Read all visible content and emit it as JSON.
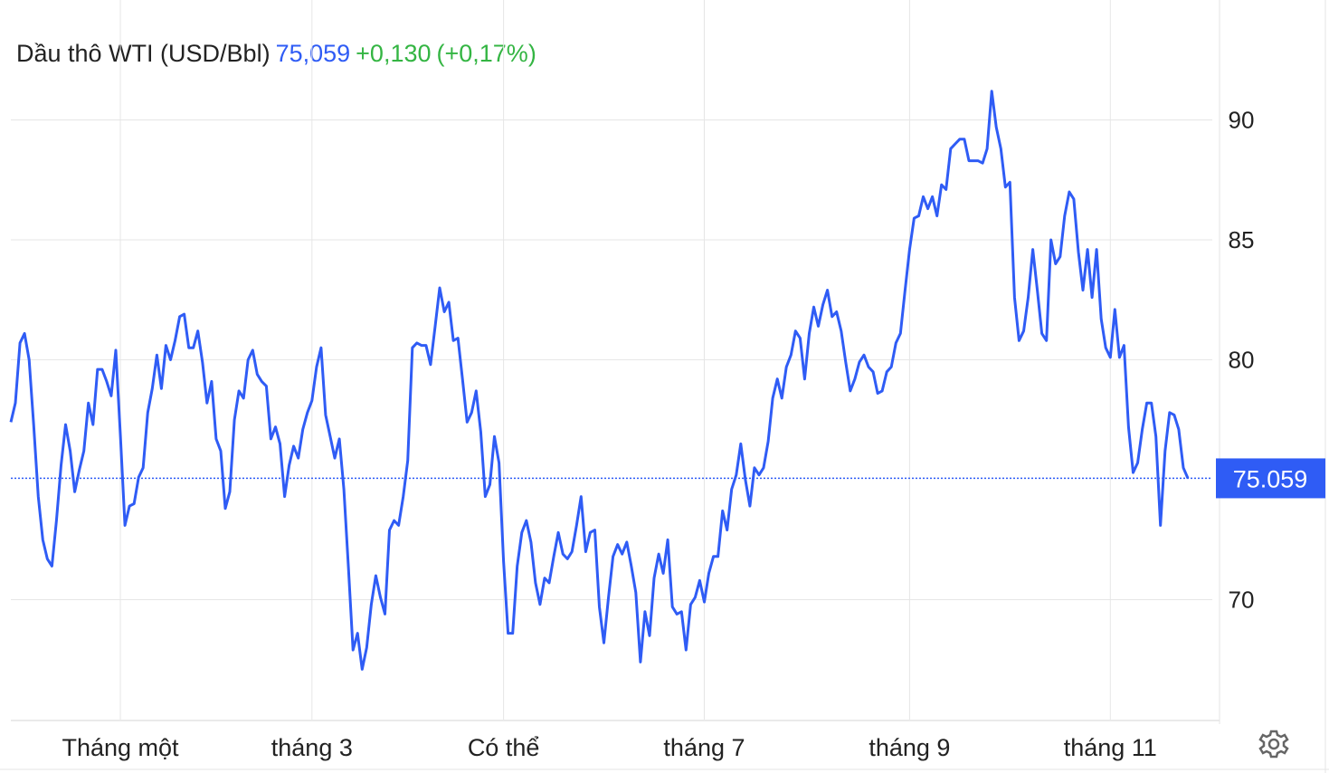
{
  "chart_data": {
    "type": "line",
    "title": "Dầu thô WTI (USD/Bbl)",
    "price_text": "75,059",
    "change_text": "+0,130",
    "change_pct_text": "(+0,17%)",
    "last_price": 75.059,
    "categories": [
      null,
      null,
      null,
      null,
      null,
      null,
      null,
      null,
      null,
      null,
      null,
      null,
      null,
      null,
      null,
      null,
      null,
      null,
      null,
      null,
      null,
      null,
      null,
      null,
      "Tháng một",
      null,
      null,
      null,
      null,
      null,
      null,
      null,
      null,
      null,
      null,
      null,
      null,
      null,
      null,
      null,
      null,
      null,
      null,
      null,
      null,
      null,
      null,
      null,
      null,
      null,
      null,
      null,
      null,
      null,
      null,
      null,
      null,
      null,
      null,
      null,
      null,
      null,
      null,
      null,
      null,
      null,
      "tháng 3",
      null,
      null,
      null,
      null,
      null,
      null,
      null,
      null,
      null,
      null,
      null,
      null,
      null,
      null,
      null,
      null,
      null,
      null,
      null,
      null,
      null,
      null,
      null,
      null,
      null,
      null,
      null,
      null,
      null,
      null,
      null,
      null,
      null,
      null,
      null,
      null,
      null,
      null,
      null,
      null,
      null,
      "Có thể",
      null,
      null,
      null,
      null,
      null,
      null,
      null,
      null,
      null,
      null,
      null,
      null,
      null,
      null,
      null,
      null,
      null,
      null,
      null,
      null,
      null,
      null,
      null,
      null,
      null,
      null,
      null,
      null,
      null,
      null,
      null,
      null,
      null,
      null,
      null,
      null,
      null,
      null,
      null,
      null,
      null,
      null,
      null,
      "tháng 7",
      null,
      null,
      null,
      null,
      null,
      null,
      null,
      null,
      null,
      null,
      null,
      null,
      null,
      null,
      null,
      null,
      null,
      null,
      null,
      null,
      null,
      null,
      null,
      null,
      null,
      null,
      null,
      null,
      null,
      null,
      null,
      null,
      null,
      null,
      null,
      null,
      null,
      null,
      null,
      null,
      null,
      null,
      null,
      null,
      "tháng 9",
      null,
      null,
      null,
      null,
      null,
      null,
      null,
      null,
      null,
      null,
      null,
      null,
      null,
      null,
      null,
      null,
      null,
      null,
      null,
      null,
      null,
      null,
      null,
      null,
      null,
      null,
      null,
      null,
      null,
      null,
      null,
      null,
      null,
      null,
      null,
      null,
      null,
      null,
      null,
      null,
      null,
      null,
      null,
      "tháng 11",
      null,
      null,
      null,
      null,
      null,
      null,
      null,
      null,
      null,
      null,
      null,
      null,
      null,
      null,
      null,
      null,
      null
    ],
    "series": [
      {
        "color": "#2f5cf5",
        "values": [
          77.4,
          78.2,
          80.7,
          81.1,
          80.0,
          77.3,
          74.3,
          72.5,
          71.7,
          71.4,
          73.3,
          75.6,
          77.3,
          76.2,
          74.5,
          75.4,
          76.2,
          78.2,
          77.3,
          79.6,
          79.6,
          79.1,
          78.5,
          80.4,
          76.9,
          73.1,
          73.9,
          74.0,
          75.1,
          75.5,
          77.8,
          78.8,
          80.2,
          78.8,
          80.6,
          80.0,
          80.8,
          81.8,
          81.9,
          80.5,
          80.5,
          81.2,
          79.9,
          78.2,
          79.1,
          76.7,
          76.2,
          73.8,
          74.5,
          77.5,
          78.7,
          78.4,
          80.0,
          80.4,
          79.4,
          79.1,
          78.9,
          76.7,
          77.2,
          76.5,
          74.3,
          75.6,
          76.4,
          75.9,
          77.1,
          77.8,
          78.3,
          79.7,
          80.5,
          77.7,
          76.8,
          75.9,
          76.7,
          74.6,
          71.3,
          67.9,
          68.6,
          67.1,
          68.0,
          69.8,
          71.0,
          70.1,
          69.4,
          72.9,
          73.3,
          73.1,
          74.3,
          75.8,
          80.5,
          80.7,
          80.6,
          80.6,
          79.8,
          81.4,
          83.0,
          82.0,
          82.4,
          80.8,
          80.9,
          79.2,
          77.4,
          77.8,
          78.7,
          77.0,
          74.3,
          74.8,
          76.8,
          75.7,
          71.6,
          68.6,
          68.6,
          71.4,
          72.8,
          73.3,
          72.4,
          70.7,
          69.8,
          70.9,
          70.7,
          71.8,
          72.8,
          71.9,
          71.7,
          72.0,
          73.1,
          74.3,
          72.0,
          72.8,
          72.9,
          69.7,
          68.2,
          70.1,
          71.8,
          72.3,
          71.9,
          72.4,
          71.4,
          70.3,
          67.4,
          69.5,
          68.5,
          70.9,
          71.9,
          71.1,
          72.5,
          69.7,
          69.4,
          69.5,
          67.9,
          69.8,
          70.1,
          70.8,
          69.9,
          71.1,
          71.8,
          71.8,
          73.7,
          72.9,
          74.6,
          75.2,
          76.5,
          75.0,
          73.9,
          75.5,
          75.2,
          75.5,
          76.6,
          78.4,
          79.2,
          78.4,
          79.7,
          80.2,
          81.2,
          80.9,
          79.2,
          81.1,
          82.2,
          81.4,
          82.3,
          82.9,
          81.8,
          82.0,
          81.2,
          79.9,
          78.7,
          79.2,
          79.9,
          80.2,
          79.7,
          79.5,
          78.6,
          78.7,
          79.5,
          79.7,
          80.7,
          81.1,
          82.9,
          84.6,
          85.9,
          86.0,
          86.8,
          86.3,
          86.8,
          86.0,
          87.3,
          87.1,
          88.8,
          89.0,
          89.2,
          89.2,
          88.3,
          88.3,
          88.3,
          88.2,
          88.8,
          91.2,
          89.7,
          88.8,
          87.2,
          87.4,
          82.6,
          80.8,
          81.2,
          82.6,
          84.6,
          82.9,
          81.1,
          80.8,
          85.0,
          84.0,
          84.3,
          86.0,
          87.0,
          86.7,
          84.5,
          82.9,
          84.6,
          82.6,
          84.6,
          81.7,
          80.5,
          80.1,
          82.1,
          80.1,
          80.6,
          77.2,
          75.3,
          75.7,
          77.1,
          78.2,
          78.2,
          76.8,
          73.1,
          76.2,
          77.8,
          77.7,
          77.1,
          75.5,
          75.059
        ]
      }
    ],
    "ylim": [
      65,
      95
    ],
    "yticks": [
      70,
      80,
      85,
      90
    ],
    "grid": true
  }
}
